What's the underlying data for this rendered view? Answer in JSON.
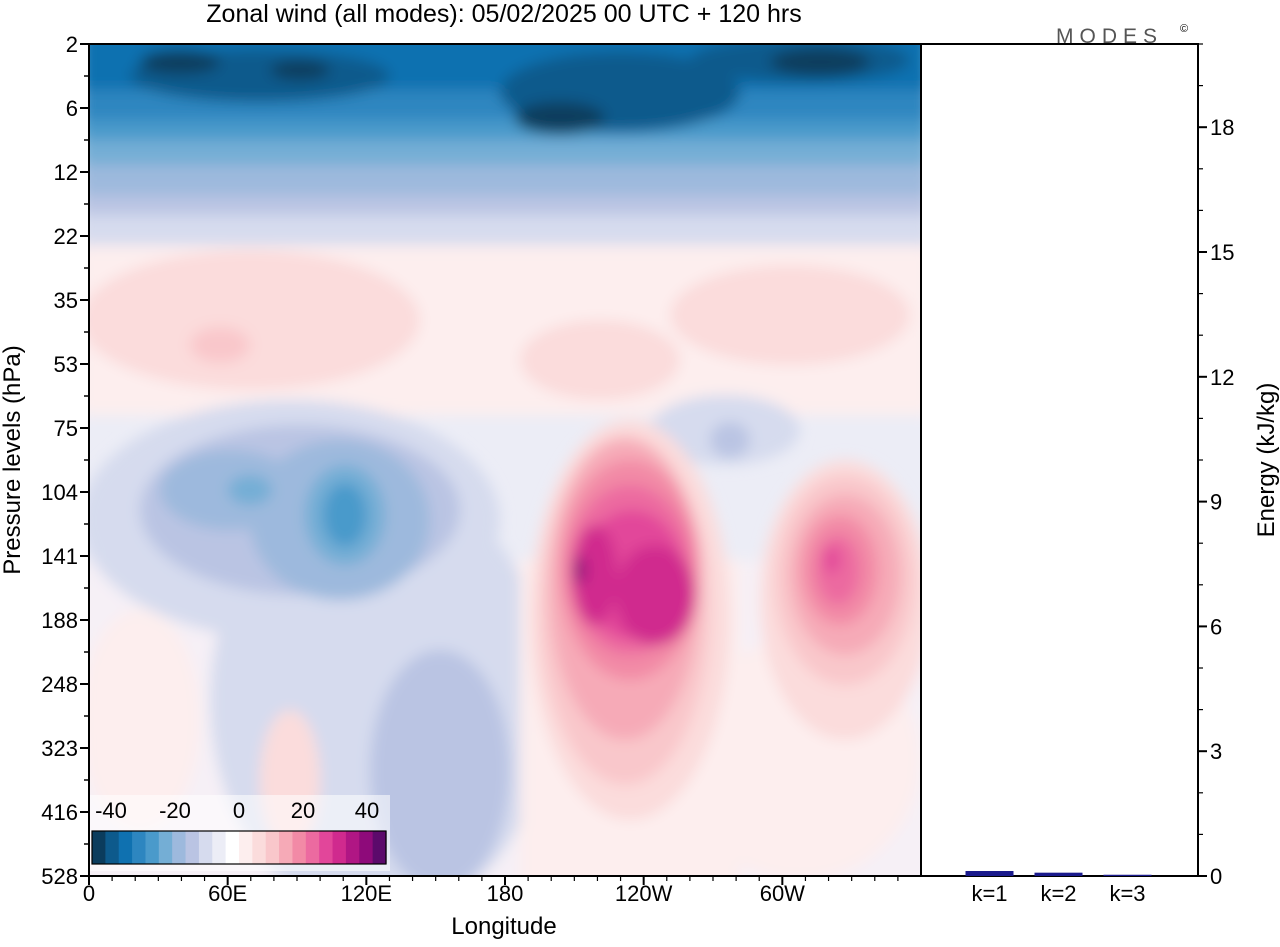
{
  "chart_data": [
    {
      "type": "heatmap",
      "title": "Zonal wind (all modes):  05/02/2025  00 UTC  + 120 hrs",
      "xlabel": "Longitude",
      "ylabel": "Pressure levels (hPa)",
      "x_ticks": [
        "0",
        "60E",
        "120E",
        "180",
        "120W",
        "60W"
      ],
      "y_ticks": [
        "2",
        "6",
        "12",
        "22",
        "35",
        "53",
        "75",
        "104",
        "141",
        "188",
        "248",
        "323",
        "416",
        "528"
      ],
      "colorbar": {
        "ticks": [
          "-40",
          "-20",
          "0",
          "20",
          "40"
        ],
        "colors": [
          "#0b3c5d",
          "#0d5a8c",
          "#0f71b0",
          "#2d86c0",
          "#4a9acb",
          "#74aed5",
          "#9db9dd",
          "#bac4e3",
          "#d6dbee",
          "#ecedf6",
          "#ffffff",
          "#fdeeee",
          "#fbdcdc",
          "#f9c7cb",
          "#f6aab7",
          "#f28aa6",
          "#ec6aa0",
          "#e2469a",
          "#d02a8e",
          "#b01684",
          "#8e0a7a",
          "#5c0a6b"
        ]
      },
      "colors": {
        "stratosphere_east": "#0f71b0",
        "trough": "#74aed5",
        "jet": "#d02a8e"
      }
    },
    {
      "type": "bar",
      "categories": [
        "k=1",
        "k=2",
        "k=3"
      ],
      "values": [
        0.12,
        0.08,
        0.03
      ],
      "ylabel": "Energy (kJ/kg)",
      "ylim": [
        0,
        20
      ],
      "y_ticks": [
        "0",
        "3",
        "6",
        "9",
        "12",
        "15",
        "18"
      ],
      "bar_color": "#1a1a8c"
    }
  ],
  "logo": "MODES",
  "logo_mark": "©"
}
